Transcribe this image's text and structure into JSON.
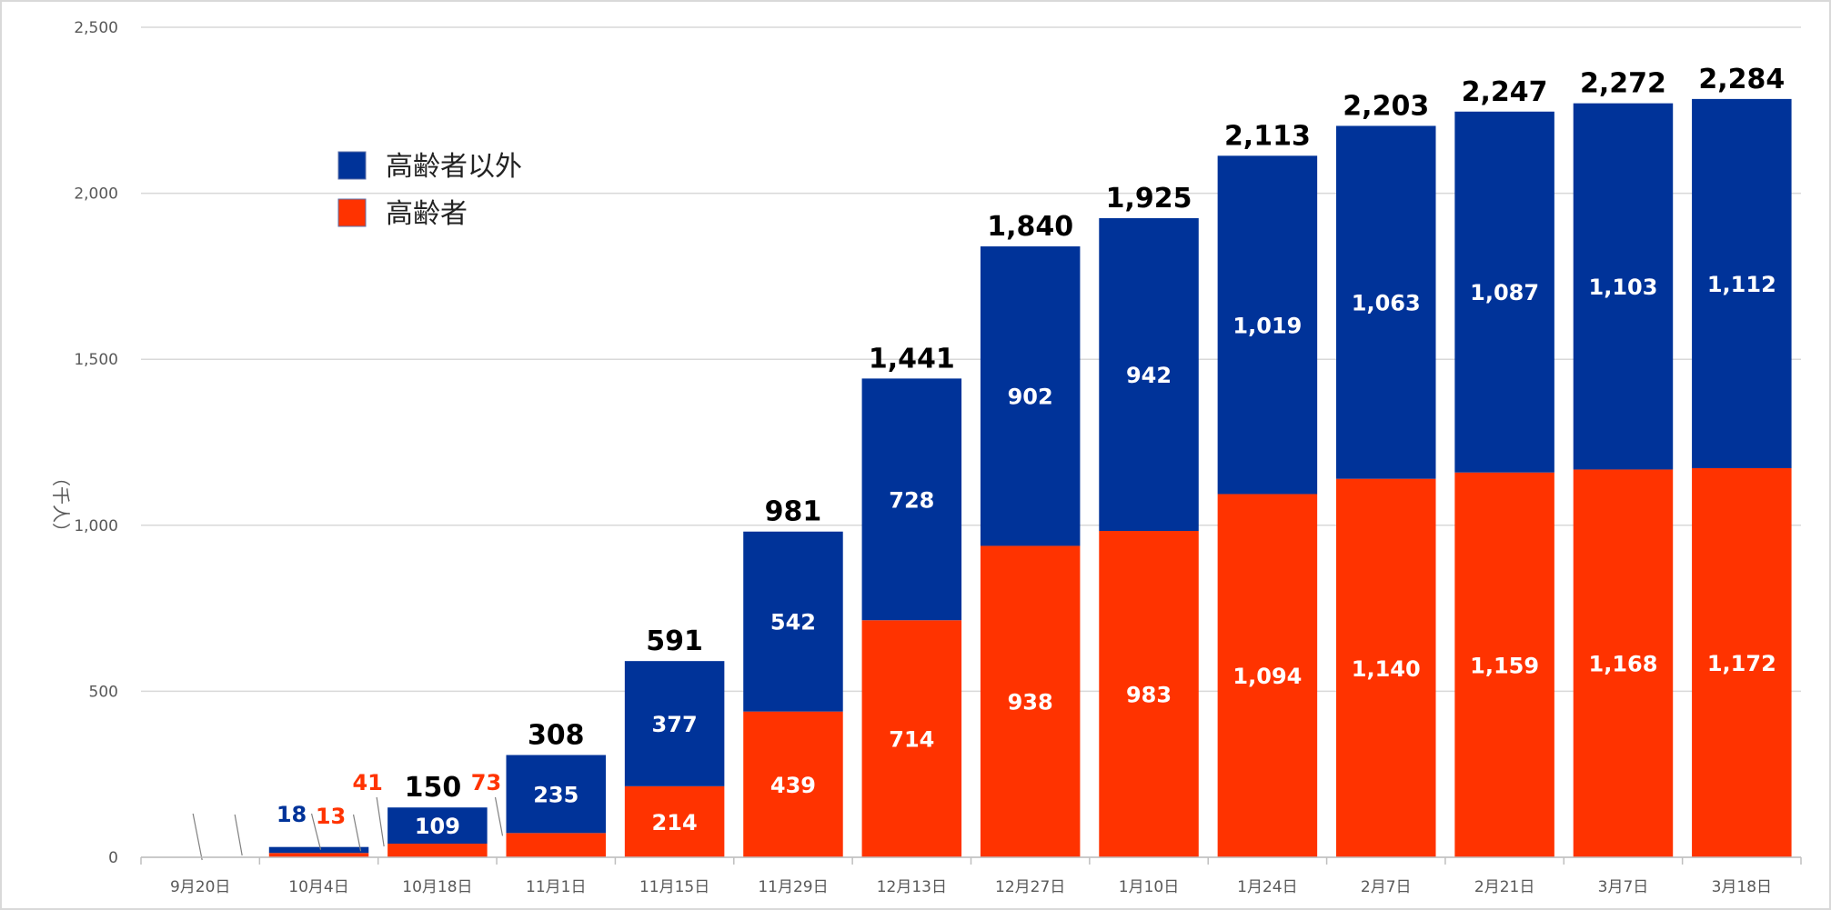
{
  "chart_data": {
    "type": "bar",
    "stacked": true,
    "ylabel": "（千人）",
    "ylim": [
      0,
      2500
    ],
    "yticks": [
      0,
      500,
      1000,
      1500,
      2000,
      2500
    ],
    "ytick_labels": [
      "0",
      "500",
      "1,000",
      "1,500",
      "2,000",
      "2,500"
    ],
    "grid": true,
    "legend_position": "upper-left",
    "categories": [
      "9月20日",
      "10月4日",
      "10月18日",
      "11月1日",
      "11月15日",
      "11月29日",
      "12月13日",
      "12月27日",
      "1月10日",
      "1月24日",
      "2月7日",
      "2月21日",
      "3月7日",
      "3月18日"
    ],
    "series": [
      {
        "name": "高齢者",
        "color": "#ff3300",
        "values": [
          0,
          13,
          41,
          73,
          214,
          439,
          714,
          938,
          983,
          1094,
          1140,
          1159,
          1168,
          1172
        ],
        "labels": [
          "",
          "13",
          "41",
          "73",
          "214",
          "439",
          "714",
          "938",
          "983",
          "1,094",
          "1,140",
          "1,159",
          "1,168",
          "1,172"
        ]
      },
      {
        "name": "高齢者以外",
        "color": "#003399",
        "values": [
          0,
          18,
          109,
          235,
          377,
          542,
          728,
          902,
          942,
          1019,
          1063,
          1087,
          1103,
          1112
        ],
        "labels": [
          "",
          "18",
          "109",
          "235",
          "377",
          "542",
          "728",
          "902",
          "942",
          "1,019",
          "1,063",
          "1,087",
          "1,103",
          "1,112"
        ]
      }
    ],
    "totals": [
      "",
      "",
      "150",
      "308",
      "591",
      "981",
      "1,441",
      "1,840",
      "1,925",
      "2,113",
      "2,203",
      "2,247",
      "2,272",
      "2,284"
    ]
  }
}
